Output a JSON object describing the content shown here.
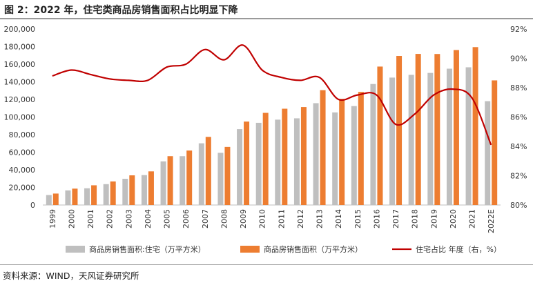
{
  "figure": {
    "title": "图 2：2022 年，住宅类商品房销售面积占比明显下降",
    "source": "资料来源：WIND，天风证券研究所"
  },
  "chart_data": {
    "type": "bar",
    "categories": [
      "1999",
      "2000",
      "2001",
      "2002",
      "2003",
      "2004",
      "2005",
      "2006",
      "2007",
      "2008",
      "2009",
      "2010",
      "2011",
      "2012",
      "2013",
      "2014",
      "2015",
      "2016",
      "2017",
      "2018",
      "2019",
      "2020",
      "2021",
      "2022E"
    ],
    "series": [
      {
        "name": "商品房销售面积:住宅（万平方米）",
        "type": "bar",
        "axis": "left",
        "color": "#bfbfbf",
        "values": [
          11300,
          16600,
          19000,
          23700,
          29800,
          34000,
          49600,
          55500,
          70100,
          59300,
          86200,
          93400,
          97000,
          98500,
          115700,
          105200,
          112400,
          137500,
          144800,
          147900,
          150100,
          154900,
          156500,
          118000
        ]
      },
      {
        "name": "商品房销售面积（万平方米）",
        "type": "bar",
        "axis": "left",
        "color": "#ed7d31",
        "values": [
          13000,
          18600,
          22400,
          26800,
          33700,
          38200,
          55500,
          61900,
          77400,
          66000,
          94800,
          104700,
          109400,
          111300,
          130500,
          120600,
          128500,
          157300,
          169400,
          171700,
          171600,
          176100,
          179400,
          141600
        ]
      },
      {
        "name": "住宅占比 年度（右，%）",
        "type": "line",
        "axis": "right",
        "color": "#c00000",
        "values": [
          88.8,
          89.2,
          88.9,
          88.6,
          88.5,
          88.5,
          89.4,
          89.6,
          90.6,
          89.9,
          90.9,
          89.2,
          88.7,
          88.5,
          88.7,
          87.2,
          87.5,
          87.5,
          85.5,
          86.2,
          87.5,
          87.9,
          87.3,
          84.1
        ]
      }
    ],
    "ylim_left": [
      0,
      200000
    ],
    "yticks_left": [
      "0",
      "20,000",
      "40,000",
      "60,000",
      "80,000",
      "100,000",
      "120,000",
      "140,000",
      "160,000",
      "180,000",
      "200,000"
    ],
    "ylim_right": [
      80,
      92
    ],
    "yticks_right": [
      "80%",
      "82%",
      "84%",
      "86%",
      "88%",
      "90%",
      "92%"
    ],
    "legend_position": "bottom",
    "grid": false
  }
}
